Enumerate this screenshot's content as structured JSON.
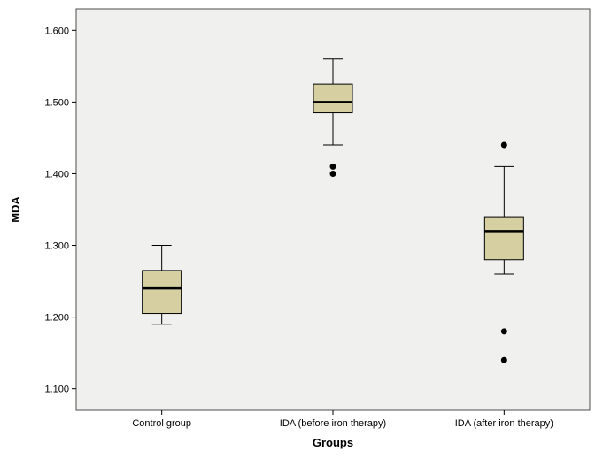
{
  "chart_data": {
    "type": "boxplot",
    "title": "",
    "xlabel": "Groups",
    "ylabel": "MDA",
    "ylim": [
      1.07,
      1.63
    ],
    "grid": false,
    "legend": "none",
    "yticks": [
      {
        "value": 1.1,
        "label": "1.100"
      },
      {
        "value": 1.2,
        "label": "1.200"
      },
      {
        "value": 1.3,
        "label": "1.300"
      },
      {
        "value": 1.4,
        "label": "1.400"
      },
      {
        "value": 1.5,
        "label": "1.500"
      },
      {
        "value": 1.6,
        "label": "1.600"
      }
    ],
    "categories": [
      "Control group",
      "IDA (before iron therapy)",
      "IDA (after iron therapy)"
    ],
    "series": [
      {
        "category": "Control group",
        "whisker_low": 1.19,
        "q1": 1.205,
        "median": 1.24,
        "q3": 1.265,
        "whisker_high": 1.3,
        "outliers": []
      },
      {
        "category": "IDA (before iron therapy)",
        "whisker_low": 1.44,
        "q1": 1.485,
        "median": 1.5,
        "q3": 1.525,
        "whisker_high": 1.56,
        "outliers": [
          1.41,
          1.4
        ]
      },
      {
        "category": "IDA (after iron therapy)",
        "whisker_low": 1.26,
        "q1": 1.28,
        "median": 1.32,
        "q3": 1.34,
        "whisker_high": 1.41,
        "outliers": [
          1.44,
          1.18,
          1.14
        ]
      }
    ],
    "colors": {
      "box_fill": "#d6cfa2",
      "box_border": "#000000",
      "median": "#000000",
      "whisker": "#000000",
      "outlier": "#000000",
      "plot_bg": "#f0f0ee",
      "plot_border": "#4d4d4d",
      "background": "#ffffff"
    }
  }
}
